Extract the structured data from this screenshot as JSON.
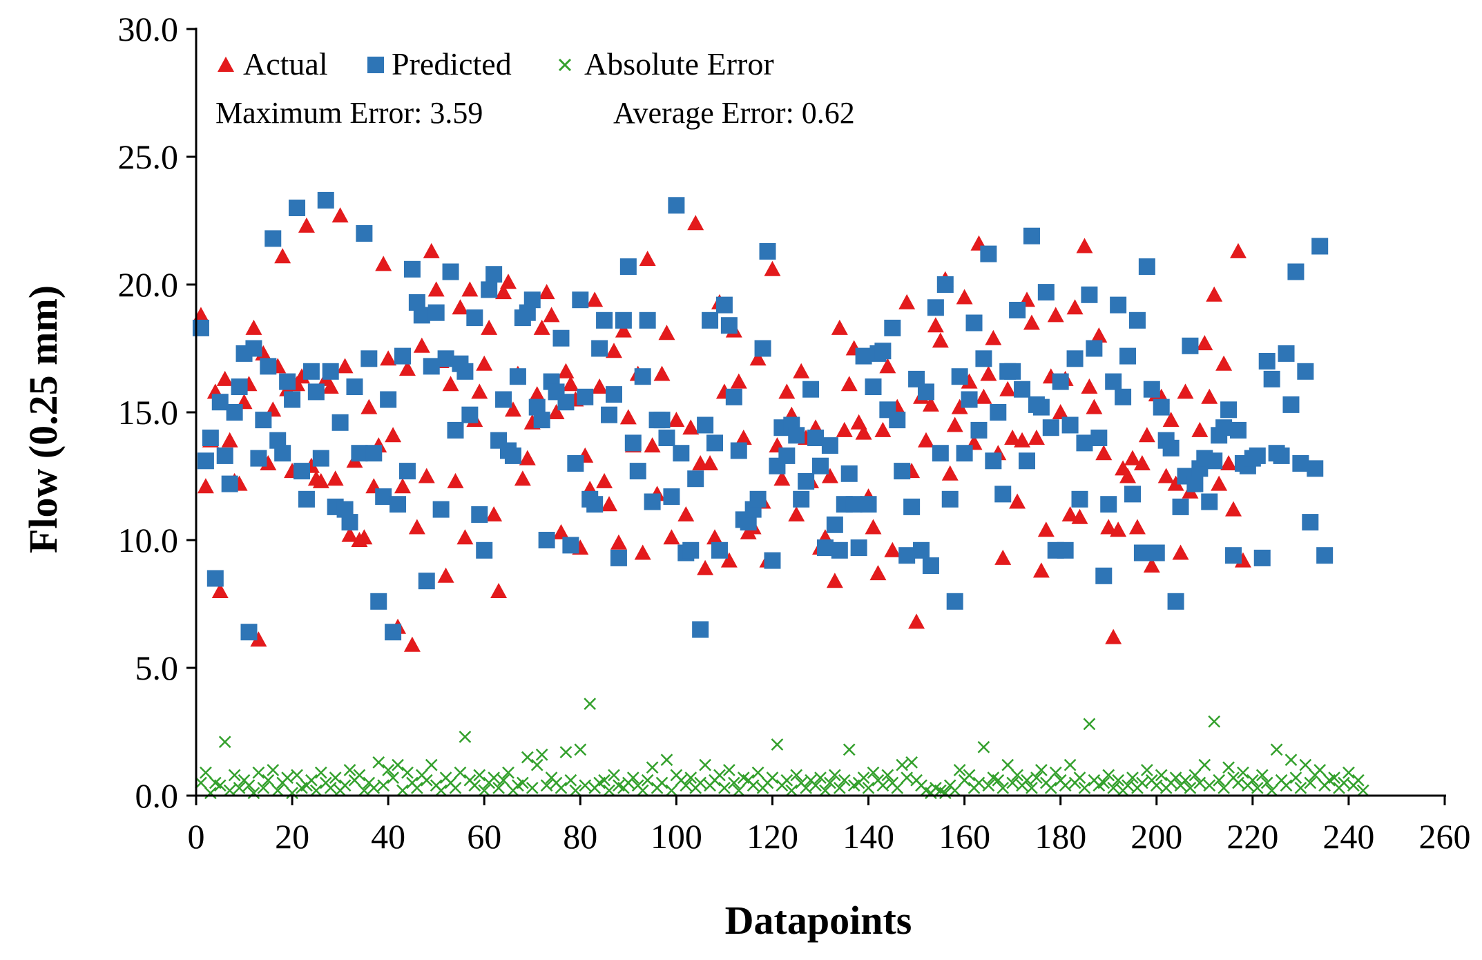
{
  "chart_data": {
    "type": "scatter",
    "title": "",
    "xlabel": "Datapoints",
    "ylabel": "Flow (0.25 mm)",
    "xlim": [
      0,
      260
    ],
    "ylim": [
      0,
      30
    ],
    "x_ticks": [
      "0",
      "20",
      "40",
      "60",
      "80",
      "100",
      "120",
      "140",
      "160",
      "180",
      "200",
      "220",
      "240",
      "260"
    ],
    "y_ticks": [
      "0.0",
      "5.0",
      "10.0",
      "15.0",
      "20.0",
      "25.0",
      "30.0"
    ],
    "legend": {
      "placement": "top-left",
      "entries": [
        "Actual",
        "Predicted",
        "Absolute Error"
      ]
    },
    "annotations": {
      "max_error": "Maximum Error: 3.59",
      "avg_error": "Average Error: 0.62"
    },
    "colors": {
      "Actual": "#e31a1c",
      "Predicted": "#2e75b6",
      "Absolute Error": "#33a02c"
    },
    "series": [
      {
        "name": "Actual",
        "marker": "triangle",
        "y": [
          18.8,
          12.1,
          13.9,
          15.8,
          8.0,
          16.3,
          13.9,
          12.3,
          12.2,
          15.4,
          16.1,
          18.3,
          6.1,
          17.3,
          13.0,
          15.1,
          16.8,
          21.1,
          15.9,
          12.7,
          16.1,
          16.4,
          22.3,
          12.9,
          12.4,
          12.3,
          16.3,
          16.0,
          12.4,
          22.7,
          16.8,
          10.2,
          13.1,
          10.0,
          10.1,
          15.2,
          12.1,
          13.7,
          20.8,
          17.1,
          14.1,
          6.6,
          12.1,
          16.7,
          5.9,
          10.5,
          17.6,
          12.5,
          21.3,
          19.8,
          17.0,
          8.6,
          16.1,
          12.3,
          19.1,
          10.1,
          19.8,
          14.7,
          15.8,
          16.9,
          18.3,
          11.0,
          8.0,
          19.7,
          20.1,
          15.1,
          16.5,
          12.4,
          13.2,
          14.6,
          15.7,
          18.3,
          19.7,
          18.8,
          15.0,
          10.3,
          16.6,
          16.1,
          15.5,
          9.7,
          13.3,
          12.0,
          19.4,
          16.0,
          12.3,
          11.4,
          17.4,
          9.9,
          18.2,
          14.8,
          13.7,
          16.5,
          9.5,
          21.0,
          13.7,
          11.8,
          16.5,
          18.1,
          10.1,
          14.7,
          13.4,
          11.0,
          14.4,
          22.4,
          13.0,
          8.9,
          13.0,
          10.1,
          19.3,
          15.8,
          9.2,
          18.2,
          16.2,
          14.0,
          10.3,
          10.5,
          17.1,
          11.5,
          9.2,
          20.6,
          13.7,
          12.4,
          15.8,
          14.9,
          11.0,
          16.6,
          14.0,
          12.3,
          14.4,
          9.7,
          10.1,
          12.5,
          8.4,
          18.3,
          14.3,
          16.1,
          17.5,
          14.6,
          14.2,
          11.7,
          10.5,
          8.7,
          14.3,
          16.8,
          9.6,
          15.2,
          12.7,
          19.3,
          12.7,
          6.8,
          15.6,
          13.9,
          15.3,
          18.4,
          17.8,
          20.2,
          12.6,
          14.5,
          15.2,
          19.5,
          16.2,
          13.8,
          21.6,
          15.6,
          16.5,
          17.9,
          13.4,
          9.3,
          15.9,
          14.0,
          11.5,
          13.9,
          19.4,
          18.5,
          14.0,
          8.8,
          10.4,
          16.4,
          18.8,
          15.0,
          16.3,
          11.0,
          19.1,
          10.9,
          21.5,
          16.0,
          15.2,
          18.0,
          13.4,
          10.5,
          6.2,
          10.4,
          12.8,
          12.5,
          13.2,
          10.5,
          13.0,
          14.1,
          9.0,
          15.7,
          15.6,
          12.5,
          14.7,
          12.2,
          9.5,
          15.8,
          11.9,
          12.5,
          14.3,
          17.7,
          15.6,
          19.6,
          12.2,
          16.9,
          13.0,
          11.2,
          21.3,
          9.2
        ]
      },
      {
        "name": "Predicted",
        "marker": "square",
        "y": [
          18.3,
          13.1,
          14.0,
          8.5,
          15.4,
          13.3,
          12.2,
          15.0,
          16.0,
          17.3,
          6.4,
          17.5,
          13.2,
          14.7,
          16.8,
          21.8,
          13.9,
          13.4,
          16.2,
          15.5,
          23.0,
          12.7,
          11.6,
          16.6,
          15.8,
          13.2,
          23.3,
          16.6,
          11.3,
          14.6,
          11.2,
          10.7,
          16.0,
          13.4,
          22.0,
          17.1,
          13.4,
          7.6,
          11.7,
          15.5,
          6.4,
          11.4,
          17.2,
          12.7,
          20.6,
          19.3,
          18.8,
          8.4,
          16.8,
          18.9,
          11.2,
          17.1,
          20.5,
          14.3,
          16.9,
          16.6,
          14.9,
          18.7,
          11.0,
          9.6,
          19.8,
          20.4,
          13.9,
          15.5,
          13.5,
          13.3,
          16.4,
          18.7,
          18.9,
          19.4,
          15.2,
          14.7,
          10.0,
          16.2,
          15.8,
          17.9,
          15.4,
          9.8,
          13.0,
          19.4,
          15.6,
          11.6,
          11.4,
          17.5,
          18.6,
          14.9,
          15.7,
          9.3,
          18.6,
          20.7,
          13.8,
          12.7,
          16.4,
          18.6,
          11.5,
          14.7,
          14.7,
          14.0,
          11.7,
          23.1,
          13.4,
          9.5,
          9.6,
          12.4,
          6.5,
          14.5,
          18.6,
          13.8,
          9.6,
          19.2,
          18.4,
          15.6,
          13.5,
          10.8,
          10.7,
          11.2,
          11.6,
          17.5,
          21.3,
          9.2,
          12.9,
          14.4,
          13.3,
          14.5,
          14.1,
          11.6,
          12.3,
          15.9,
          14.0,
          12.9,
          9.7,
          13.7,
          10.6,
          9.6,
          11.4,
          12.6,
          11.4,
          9.7,
          17.2,
          11.4,
          16.0,
          17.3,
          17.4,
          15.1,
          18.3,
          14.7,
          12.7,
          9.4,
          11.3,
          16.3,
          9.6,
          15.8,
          9.0,
          19.1,
          13.4,
          20.0,
          11.6,
          7.6,
          16.4,
          13.4,
          15.5,
          18.5,
          14.3,
          17.1,
          21.2,
          13.1,
          15.0,
          11.8,
          16.6,
          16.6,
          19.0,
          15.9,
          13.1,
          21.9,
          15.3,
          15.2,
          19.7,
          14.4,
          9.6,
          16.2,
          9.6,
          14.5,
          17.1,
          11.6,
          13.8,
          19.6,
          17.5,
          14.0,
          8.6,
          11.4,
          16.2,
          19.2,
          15.6,
          17.2,
          11.8,
          18.6,
          9.5,
          20.7,
          15.9,
          9.5,
          15.2,
          13.9,
          13.6,
          7.6,
          11.3,
          12.5,
          17.6,
          12.2,
          12.8,
          13.2,
          11.5,
          13.1,
          14.1,
          14.4,
          15.1,
          9.4,
          14.3,
          13.0,
          12.9,
          13.2,
          13.3,
          9.3,
          17.0,
          16.3,
          13.4,
          13.3,
          17.3,
          15.3,
          20.5,
          13.0,
          16.6,
          10.7,
          12.8,
          21.5,
          9.4
        ]
      },
      {
        "name": "Absolute Error",
        "marker": "x",
        "y": [
          0.5,
          0.9,
          0.1,
          0.5,
          0.4,
          2.1,
          0.2,
          0.8,
          0.3,
          0.6,
          0.4,
          0.1,
          0.9,
          0.3,
          0.6,
          1.0,
          0.2,
          0.5,
          0.7,
          0.1,
          0.8,
          0.3,
          0.4,
          0.6,
          0.2,
          0.9,
          0.5,
          0.3,
          0.7,
          0.2,
          0.4,
          1.0,
          0.6,
          0.8,
          0.2,
          0.5,
          0.3,
          1.3,
          0.4,
          1.0,
          0.7,
          1.2,
          0.2,
          0.9,
          0.5,
          0.3,
          0.8,
          0.6,
          1.2,
          0.4,
          0.2,
          0.7,
          0.5,
          0.3,
          0.9,
          2.3,
          0.6,
          0.4,
          0.8,
          0.2,
          0.5,
          0.7,
          0.3,
          0.6,
          0.9,
          0.2,
          0.4,
          0.5,
          1.5,
          0.3,
          1.2,
          1.6,
          0.4,
          0.7,
          0.5,
          0.3,
          1.7,
          0.6,
          0.2,
          1.8,
          0.4,
          3.59,
          0.3,
          0.5,
          0.6,
          0.2,
          0.8,
          0.4,
          0.3,
          0.5,
          0.7,
          0.4,
          0.2,
          0.6,
          1.1,
          0.3,
          0.5,
          1.4,
          0.2,
          0.8,
          0.6,
          0.4,
          0.7,
          0.3,
          0.5,
          1.2,
          0.4,
          0.6,
          0.8,
          0.3,
          1.0,
          0.5,
          0.2,
          0.7,
          0.6,
          0.4,
          0.9,
          0.3,
          0.5,
          0.7,
          2.0,
          0.4,
          0.6,
          0.2,
          0.8,
          0.5,
          0.3,
          0.6,
          0.4,
          0.7,
          0.2,
          0.5,
          0.8,
          0.3,
          0.6,
          1.8,
          0.4,
          0.5,
          0.7,
          0.3,
          0.9,
          0.6,
          0.4,
          0.8,
          0.5,
          0.3,
          1.2,
          0.7,
          1.3,
          0.6,
          0.4,
          0.2,
          0.1,
          0.3,
          0.2,
          0.1,
          0.4,
          0.2,
          1.0,
          0.6,
          0.8,
          0.3,
          0.5,
          1.9,
          0.4,
          0.7,
          0.6,
          0.3,
          1.2,
          0.5,
          0.8,
          0.4,
          0.6,
          0.3,
          0.7,
          1.0,
          0.5,
          0.3,
          0.9,
          0.6,
          0.4,
          1.2,
          0.5,
          0.7,
          0.3,
          2.8,
          0.6,
          0.4,
          0.5,
          0.8,
          0.3,
          0.6,
          0.2,
          0.4,
          0.7,
          0.3,
          0.5,
          1.0,
          0.6,
          0.4,
          0.8,
          0.3,
          0.5,
          0.7,
          0.4,
          0.6,
          0.3,
          0.8,
          0.5,
          1.2,
          0.4,
          2.9,
          0.6,
          0.3,
          1.1,
          0.7,
          0.5,
          0.9,
          0.4,
          0.6,
          0.3,
          0.8,
          0.5,
          0.2,
          1.8,
          0.6,
          0.4,
          1.4,
          0.7,
          0.3,
          1.2,
          0.5,
          0.8,
          1.0,
          0.4,
          0.6,
          0.7,
          0.3,
          0.5,
          0.9,
          0.4,
          0.6,
          0.2
        ]
      }
    ]
  }
}
